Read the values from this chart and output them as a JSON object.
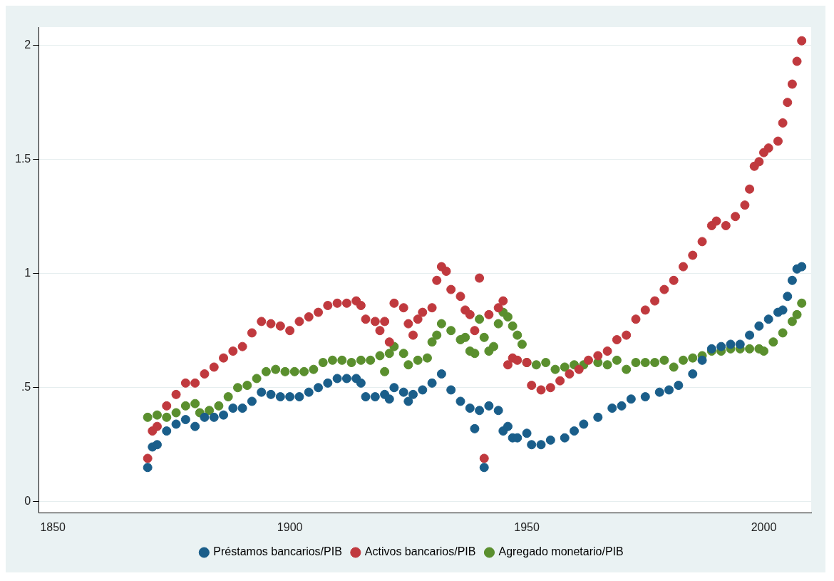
{
  "chart_data": {
    "type": "scatter",
    "xlim": [
      1847,
      2010
    ],
    "ylim": [
      -0.05,
      2.08
    ],
    "xticks": [
      1850,
      1900,
      1950,
      2000
    ],
    "yticks": [
      0,
      {
        "value": 0.5,
        "label": ".5"
      },
      1,
      1.5,
      2
    ],
    "grid": "y",
    "legend": "bottom",
    "marker": "circle",
    "series": [
      {
        "name": "Préstamos bancarios/PIB",
        "color": "#1a5e8a",
        "x": [
          1870,
          1871,
          1872,
          1874,
          1876,
          1878,
          1880,
          1882,
          1884,
          1886,
          1888,
          1890,
          1892,
          1894,
          1896,
          1898,
          1900,
          1902,
          1904,
          1906,
          1908,
          1910,
          1912,
          1914,
          1915,
          1916,
          1918,
          1920,
          1921,
          1922,
          1924,
          1925,
          1926,
          1928,
          1930,
          1932,
          1934,
          1936,
          1938,
          1939,
          1940,
          1941,
          1942,
          1944,
          1945,
          1946,
          1947,
          1948,
          1950,
          1951,
          1953,
          1955,
          1958,
          1960,
          1962,
          1965,
          1968,
          1970,
          1972,
          1975,
          1978,
          1980,
          1982,
          1985,
          1987,
          1989,
          1991,
          1993,
          1995,
          1997,
          1999,
          2001,
          2003,
          2004,
          2005,
          2006,
          2007,
          2008
        ],
        "values": [
          0.15,
          0.24,
          0.25,
          0.31,
          0.34,
          0.36,
          0.33,
          0.37,
          0.37,
          0.38,
          0.41,
          0.41,
          0.44,
          0.48,
          0.47,
          0.46,
          0.46,
          0.46,
          0.48,
          0.5,
          0.52,
          0.54,
          0.54,
          0.54,
          0.52,
          0.46,
          0.46,
          0.47,
          0.45,
          0.5,
          0.48,
          0.44,
          0.47,
          0.49,
          0.52,
          0.56,
          0.49,
          0.44,
          0.41,
          0.32,
          0.4,
          0.15,
          0.42,
          0.4,
          0.31,
          0.33,
          0.28,
          0.28,
          0.3,
          0.25,
          0.25,
          0.27,
          0.28,
          0.31,
          0.34,
          0.37,
          0.41,
          0.42,
          0.45,
          0.46,
          0.48,
          0.49,
          0.51,
          0.56,
          0.62,
          0.67,
          0.68,
          0.69,
          0.69,
          0.73,
          0.77,
          0.8,
          0.83,
          0.84,
          0.9,
          0.97,
          1.02,
          1.03
        ]
      },
      {
        "name": "Activos bancarios/PIB",
        "color": "#c0393e",
        "x": [
          1870,
          1871,
          1872,
          1874,
          1876,
          1878,
          1880,
          1882,
          1884,
          1886,
          1888,
          1890,
          1892,
          1894,
          1896,
          1898,
          1900,
          1902,
          1904,
          1906,
          1908,
          1910,
          1912,
          1914,
          1915,
          1916,
          1918,
          1919,
          1920,
          1921,
          1922,
          1924,
          1925,
          1926,
          1927,
          1928,
          1930,
          1931,
          1932,
          1933,
          1934,
          1936,
          1937,
          1938,
          1939,
          1940,
          1941,
          1942,
          1944,
          1945,
          1946,
          1947,
          1948,
          1950,
          1951,
          1953,
          1955,
          1957,
          1959,
          1961,
          1963,
          1965,
          1967,
          1969,
          1971,
          1973,
          1975,
          1977,
          1979,
          1981,
          1983,
          1985,
          1987,
          1989,
          1990,
          1992,
          1994,
          1996,
          1997,
          1998,
          1999,
          2000,
          2001,
          2003,
          2004,
          2005,
          2006,
          2007,
          2008
        ],
        "values": [
          0.19,
          0.31,
          0.33,
          0.42,
          0.47,
          0.52,
          0.52,
          0.56,
          0.59,
          0.63,
          0.66,
          0.68,
          0.74,
          0.79,
          0.78,
          0.77,
          0.75,
          0.79,
          0.81,
          0.83,
          0.86,
          0.87,
          0.87,
          0.88,
          0.86,
          0.8,
          0.79,
          0.75,
          0.79,
          0.7,
          0.87,
          0.85,
          0.78,
          0.73,
          0.8,
          0.83,
          0.85,
          0.97,
          1.03,
          1.01,
          0.93,
          0.9,
          0.84,
          0.82,
          0.75,
          0.98,
          0.19,
          0.82,
          0.85,
          0.88,
          0.6,
          0.63,
          0.62,
          0.61,
          0.51,
          0.49,
          0.5,
          0.53,
          0.56,
          0.58,
          0.62,
          0.64,
          0.66,
          0.71,
          0.73,
          0.8,
          0.84,
          0.88,
          0.93,
          0.97,
          1.03,
          1.08,
          1.14,
          1.21,
          1.23,
          1.21,
          1.25,
          1.3,
          1.37,
          1.47,
          1.49,
          1.53,
          1.55,
          1.58,
          1.66,
          1.75,
          1.83,
          1.93,
          2.02
        ]
      },
      {
        "name": "Agregado monetario/PIB",
        "color": "#5a8f2e",
        "x": [
          1870,
          1872,
          1874,
          1876,
          1878,
          1880,
          1881,
          1883,
          1885,
          1887,
          1889,
          1891,
          1893,
          1895,
          1897,
          1899,
          1901,
          1903,
          1905,
          1907,
          1909,
          1911,
          1913,
          1915,
          1917,
          1919,
          1920,
          1921,
          1922,
          1924,
          1925,
          1927,
          1929,
          1930,
          1931,
          1932,
          1934,
          1936,
          1937,
          1938,
          1939,
          1940,
          1941,
          1942,
          1943,
          1944,
          1945,
          1946,
          1947,
          1948,
          1949,
          1950,
          1952,
          1954,
          1956,
          1958,
          1960,
          1962,
          1965,
          1967,
          1969,
          1971,
          1973,
          1975,
          1977,
          1979,
          1981,
          1983,
          1985,
          1987,
          1989,
          1991,
          1993,
          1995,
          1997,
          1999,
          2000,
          2002,
          2004,
          2006,
          2007,
          2008
        ],
        "values": [
          0.37,
          0.38,
          0.37,
          0.39,
          0.42,
          0.43,
          0.39,
          0.4,
          0.42,
          0.46,
          0.5,
          0.51,
          0.54,
          0.57,
          0.58,
          0.57,
          0.57,
          0.57,
          0.58,
          0.61,
          0.62,
          0.62,
          0.61,
          0.62,
          0.62,
          0.64,
          0.57,
          0.65,
          0.68,
          0.65,
          0.6,
          0.62,
          0.63,
          0.7,
          0.73,
          0.78,
          0.75,
          0.71,
          0.72,
          0.66,
          0.65,
          0.8,
          0.72,
          0.66,
          0.68,
          0.78,
          0.83,
          0.81,
          0.77,
          0.73,
          0.69,
          0.61,
          0.6,
          0.61,
          0.58,
          0.59,
          0.6,
          0.6,
          0.61,
          0.6,
          0.62,
          0.58,
          0.61,
          0.61,
          0.61,
          0.62,
          0.59,
          0.62,
          0.63,
          0.64,
          0.66,
          0.66,
          0.67,
          0.67,
          0.67,
          0.67,
          0.66,
          0.7,
          0.74,
          0.79,
          0.82,
          0.87
        ]
      }
    ]
  }
}
